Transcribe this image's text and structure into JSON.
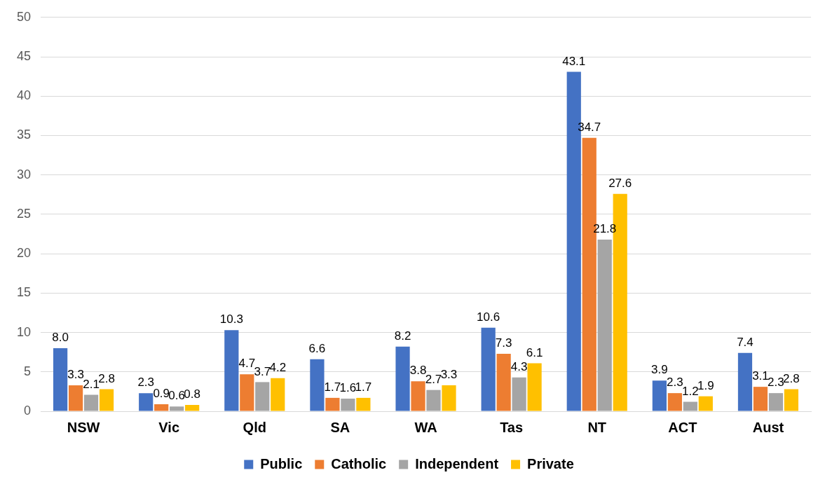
{
  "chart_data": {
    "type": "bar",
    "categories": [
      "NSW",
      "Vic",
      "Qld",
      "SA",
      "WA",
      "Tas",
      "NT",
      "ACT",
      "Aust"
    ],
    "series": [
      {
        "name": "Public",
        "color": "#4472c4",
        "values": [
          8.0,
          2.3,
          10.3,
          6.6,
          8.2,
          10.6,
          43.1,
          3.9,
          7.4
        ],
        "value_labels": [
          "8.0",
          "2.3",
          "10.3",
          "6.6",
          "8.2",
          "10.6",
          "43.1",
          "3.9",
          "7.4"
        ]
      },
      {
        "name": "Catholic",
        "color": "#ed7d31",
        "values": [
          3.3,
          0.9,
          4.7,
          1.7,
          3.8,
          7.3,
          34.7,
          2.3,
          3.1
        ],
        "value_labels": [
          "3.3",
          "0.9",
          "4.7",
          "1.7",
          "3.8",
          "7.3",
          "34.7",
          "2.3",
          "3.1"
        ]
      },
      {
        "name": "Independent",
        "color": "#a5a5a5",
        "values": [
          2.1,
          0.6,
          3.7,
          1.6,
          2.7,
          4.3,
          21.8,
          1.2,
          2.3
        ],
        "value_labels": [
          "2.1",
          "0.6",
          "3.7",
          "1.6",
          "2.7",
          "4.3",
          "21.8",
          "1.2",
          "2.3"
        ]
      },
      {
        "name": "Private",
        "color": "#ffc000",
        "values": [
          2.8,
          0.8,
          4.2,
          1.7,
          3.3,
          6.1,
          27.6,
          1.9,
          2.8
        ],
        "value_labels": [
          "2.8",
          "0.8",
          "4.2",
          "1.7",
          "3.3",
          "6.1",
          "27.6",
          "1.9",
          "2.8"
        ]
      }
    ],
    "ylim": [
      0,
      50
    ],
    "yticks": [
      0,
      5,
      10,
      15,
      20,
      25,
      30,
      35,
      40,
      45,
      50
    ],
    "grid": "y",
    "legend": "bottom"
  }
}
